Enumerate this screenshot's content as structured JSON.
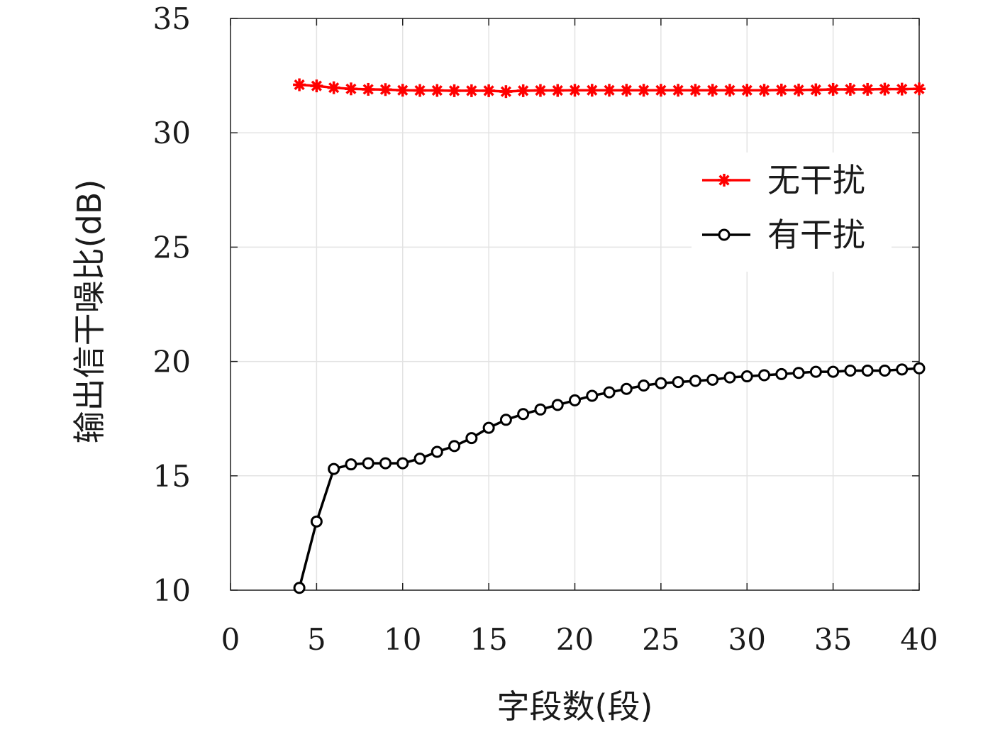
{
  "chart_data": {
    "type": "line",
    "title": "",
    "xlabel": "字段数(段)",
    "ylabel": "输出信干噪比(dB)",
    "xlim": [
      0,
      40
    ],
    "ylim": [
      10,
      35
    ],
    "xticks": [
      0,
      5,
      10,
      15,
      20,
      25,
      30,
      35,
      40
    ],
    "yticks": [
      10,
      15,
      20,
      25,
      30,
      35
    ],
    "grid": true,
    "legend_position": "right",
    "x": [
      4,
      5,
      6,
      7,
      8,
      9,
      10,
      11,
      12,
      13,
      14,
      15,
      16,
      17,
      18,
      19,
      20,
      21,
      22,
      23,
      24,
      25,
      26,
      27,
      28,
      29,
      30,
      31,
      32,
      33,
      34,
      35,
      36,
      37,
      38,
      39,
      40
    ],
    "series": [
      {
        "name": "无干扰",
        "color": "#ff0000",
        "marker": "asterisk",
        "values": [
          32.1,
          32.05,
          31.97,
          31.92,
          31.9,
          31.89,
          31.86,
          31.85,
          31.85,
          31.84,
          31.84,
          31.84,
          31.8,
          31.84,
          31.85,
          31.85,
          31.86,
          31.86,
          31.86,
          31.86,
          31.86,
          31.86,
          31.86,
          31.86,
          31.86,
          31.86,
          31.86,
          31.86,
          31.87,
          31.87,
          31.88,
          31.9,
          31.9,
          31.9,
          31.91,
          31.91,
          31.92
        ]
      },
      {
        "name": "有干扰",
        "color": "#000000",
        "marker": "circle",
        "values": [
          10.1,
          13.0,
          15.3,
          15.5,
          15.55,
          15.55,
          15.55,
          15.75,
          16.05,
          16.3,
          16.65,
          17.1,
          17.45,
          17.7,
          17.9,
          18.1,
          18.3,
          18.5,
          18.65,
          18.8,
          18.95,
          19.05,
          19.1,
          19.15,
          19.2,
          19.3,
          19.35,
          19.4,
          19.45,
          19.5,
          19.55,
          19.55,
          19.6,
          19.6,
          19.6,
          19.65,
          19.7
        ]
      }
    ]
  }
}
